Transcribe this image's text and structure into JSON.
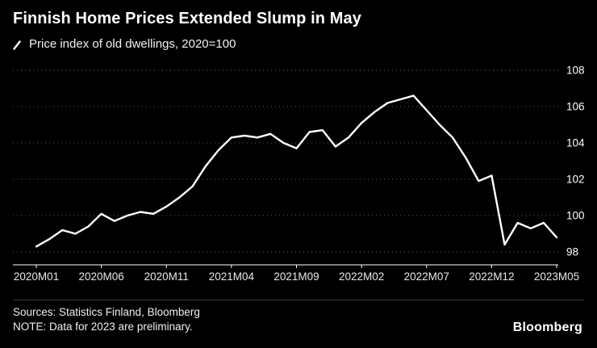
{
  "header": {
    "title": "Finnish Home Prices Extended Slump in May",
    "legend_label": "Price index of old dwellings, 2020=100"
  },
  "footer": {
    "sources": "Sources: Statistics Finland, Bloomberg",
    "note": "NOTE: Data for 2023 are preliminary.",
    "brand": "Bloomberg"
  },
  "colors": {
    "background": "#000000",
    "line": "#ffffff",
    "grid": "#5a5a5a",
    "axis": "#ffffff",
    "tick_label": "#e8e8e8"
  },
  "chart_data": {
    "type": "line",
    "title": "Finnish Home Prices Extended Slump in May",
    "series_name": "Price index of old dwellings, 2020=100",
    "x": [
      "2020M01",
      "2020M02",
      "2020M03",
      "2020M04",
      "2020M05",
      "2020M06",
      "2020M07",
      "2020M08",
      "2020M09",
      "2020M10",
      "2020M11",
      "2020M12",
      "2021M01",
      "2021M02",
      "2021M03",
      "2021M04",
      "2021M05",
      "2021M06",
      "2021M07",
      "2021M08",
      "2021M09",
      "2021M10",
      "2021M11",
      "2021M12",
      "2022M01",
      "2022M02",
      "2022M03",
      "2022M04",
      "2022M05",
      "2022M06",
      "2022M07",
      "2022M08",
      "2022M09",
      "2022M10",
      "2022M11",
      "2022M12",
      "2023M01",
      "2023M02",
      "2023M03",
      "2023M04",
      "2023M05"
    ],
    "values": [
      98.3,
      98.7,
      99.2,
      99.0,
      99.4,
      100.1,
      99.7,
      100.0,
      100.2,
      100.1,
      100.5,
      101.0,
      101.6,
      102.7,
      103.6,
      104.3,
      104.4,
      104.3,
      104.5,
      104.0,
      103.7,
      104.6,
      104.7,
      103.8,
      104.3,
      105.1,
      105.7,
      106.2,
      106.4,
      106.6,
      105.8,
      105.0,
      104.3,
      103.2,
      101.9,
      102.2,
      98.4,
      99.6,
      99.3,
      99.6,
      98.8
    ],
    "x_tick_labels": [
      "2020M01",
      "2020M06",
      "2020M11",
      "2021M04",
      "2021M09",
      "2022M02",
      "2022M07",
      "2022M12",
      "2023M05"
    ],
    "x_tick_indices": [
      0,
      5,
      10,
      15,
      20,
      25,
      30,
      35,
      40
    ],
    "y_ticks": [
      98,
      100,
      102,
      104,
      106,
      108
    ],
    "ylim": [
      97.3,
      108.6
    ],
    "grid": "dotted-horizontal",
    "legend_position": "top-left",
    "y_axis_side": "right"
  }
}
